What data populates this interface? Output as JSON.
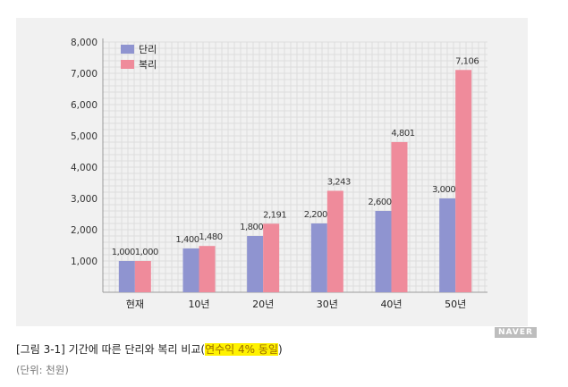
{
  "chart_data": {
    "type": "bar",
    "categories": [
      "현재",
      "10년",
      "20년",
      "30년",
      "40년",
      "50년"
    ],
    "series": [
      {
        "name": "단리",
        "color": "#8f94d0",
        "values": [
          1000,
          1400,
          1800,
          2200,
          2600,
          3000
        ],
        "labels": [
          "1,000",
          "1,400",
          "1,800",
          "2,200",
          "2,600",
          "3,000"
        ]
      },
      {
        "name": "복리",
        "color": "#ef8b9b",
        "values": [
          1000,
          1480,
          2191,
          3243,
          4801,
          7106
        ],
        "labels": [
          "1,000",
          "1,480",
          "2,191",
          "3,243",
          "4,801",
          "7,106"
        ]
      }
    ],
    "yticks": [
      1000,
      2000,
      3000,
      4000,
      5000,
      6000,
      7000,
      8000
    ],
    "ytick_labels": [
      "1,000",
      "2,000",
      "3,000",
      "4,000",
      "5,000",
      "6,000",
      "7,000",
      "8,000"
    ],
    "ylim": [
      0,
      8000
    ],
    "grid": true,
    "legend": "top-left"
  },
  "watermark": "NAVER",
  "caption": {
    "main": "[그림 3-1] 기간에 따른 단리와 복리 비교(",
    "highlight": "연수익 4% 동일",
    "close": ")"
  },
  "unit": "(단위: 천원)"
}
